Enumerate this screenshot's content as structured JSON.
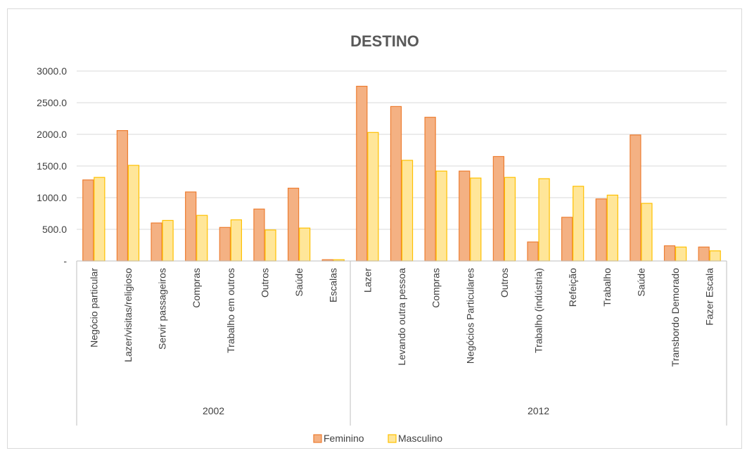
{
  "chart_data": {
    "type": "bar",
    "title": "DESTINO",
    "xlabel": "",
    "ylabel": "",
    "ylim": [
      0,
      3000
    ],
    "y_ticks": [
      "-",
      "500.0",
      "1000.0",
      "1500.0",
      "2000.0",
      "2500.0",
      "3000.0"
    ],
    "grid": "horizontal",
    "legend_position": "bottom",
    "groups": [
      {
        "label": "2002",
        "categories": [
          "Negócio particular",
          "Lazer/visitas/religioso",
          "Servir passageiros",
          "Compras",
          "Trabalho em outros",
          "Outros",
          "Saúde",
          "Escalas"
        ]
      },
      {
        "label": "2012",
        "categories": [
          "Lazer",
          "Levando outra pessoa",
          "Compras",
          "Negócios Particulares",
          "Outros",
          "Trabalho (indústria)",
          "Refeição",
          "Trabalho",
          "Saúde",
          "Transbordo Demorado",
          "Fazer Escala"
        ]
      }
    ],
    "series": [
      {
        "name": "Feminino",
        "color": "#f4b183",
        "border": "#ed7d31",
        "values": [
          1280,
          2060,
          600,
          1090,
          530,
          820,
          1150,
          20,
          2760,
          2440,
          2270,
          1420,
          1650,
          300,
          690,
          980,
          1990,
          240,
          220
        ]
      },
      {
        "name": "Masculino",
        "color": "#ffe699",
        "border": "#ffc000",
        "values": [
          1320,
          1510,
          640,
          720,
          650,
          490,
          520,
          20,
          2030,
          1590,
          1420,
          1310,
          1320,
          1300,
          1180,
          1040,
          910,
          220,
          160
        ]
      }
    ]
  }
}
